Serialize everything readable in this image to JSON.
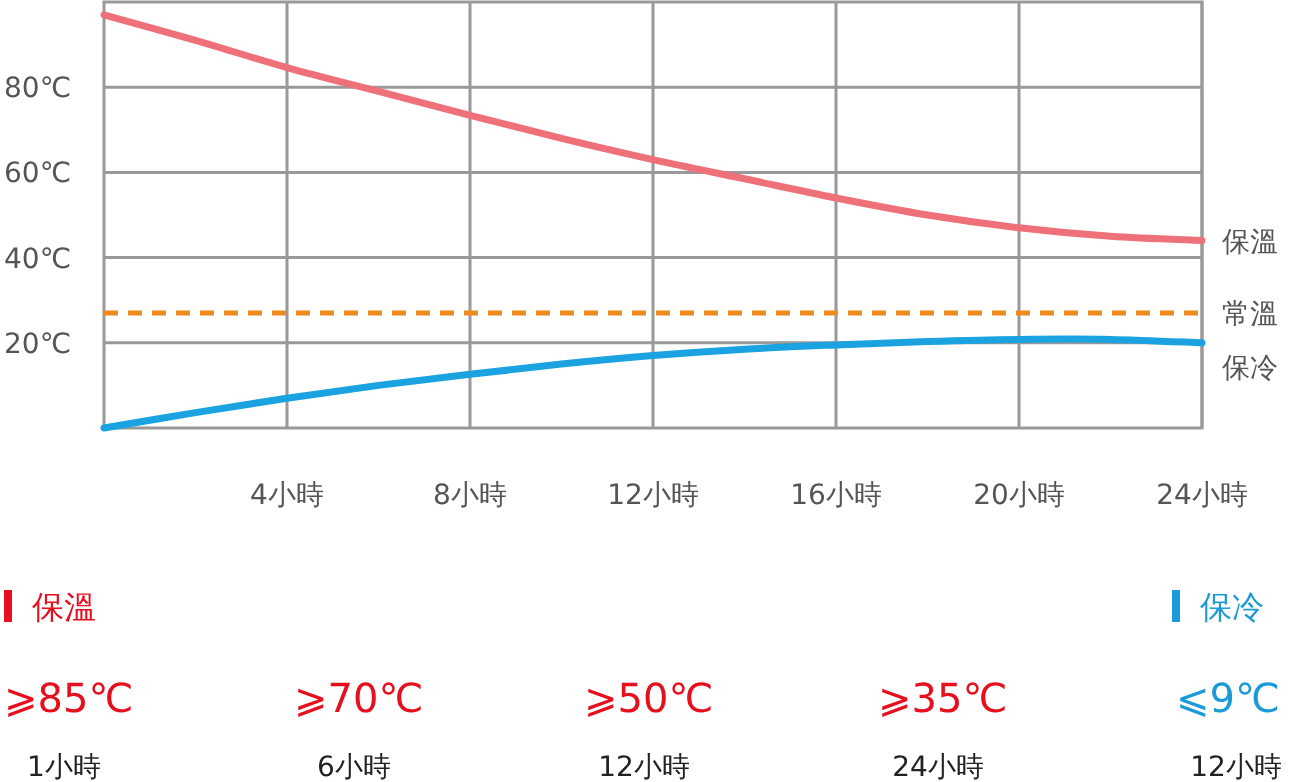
{
  "chart_data": {
    "type": "line",
    "x": [
      0,
      2,
      4,
      6,
      8,
      10,
      12,
      14,
      16,
      18,
      20,
      22,
      24
    ],
    "series": [
      {
        "name": "保溫",
        "color": "#ee717a",
        "values": [
          97,
          91,
          84.6,
          79,
          73.4,
          68,
          63,
          58.5,
          54,
          50,
          47,
          45,
          44
        ]
      },
      {
        "name": "保冷",
        "color": "#1aa3e0",
        "values": [
          0,
          3.6,
          7,
          10,
          12.6,
          15,
          17,
          18.5,
          19.5,
          20.3,
          20.8,
          20.8,
          20
        ]
      }
    ],
    "ref_lines": [
      {
        "axis": "y",
        "value": 27,
        "label": "常溫",
        "color": "#f0891e",
        "line_style": "dashed"
      }
    ],
    "xlim": [
      0,
      24
    ],
    "ylim": [
      0,
      100
    ],
    "xticks": [
      {
        "value": 4,
        "label": "4小時"
      },
      {
        "value": 8,
        "label": "8小時"
      },
      {
        "value": 12,
        "label": "12小時"
      },
      {
        "value": 16,
        "label": "16小時"
      },
      {
        "value": 20,
        "label": "20小時"
      },
      {
        "value": 24,
        "label": "24小時"
      }
    ],
    "yticks": [
      {
        "value": 20,
        "label": "20℃"
      },
      {
        "value": 40,
        "label": "40℃"
      },
      {
        "value": 60,
        "label": "60℃"
      },
      {
        "value": 80,
        "label": "80℃"
      }
    ],
    "grid": true,
    "annotations": [
      "保溫",
      "⩾85℃",
      "1小時",
      "⩾70℃",
      "6小時",
      "⩾50℃",
      "12小時",
      "⩾35℃",
      "24小時",
      "保冷",
      "⩽9℃",
      "12小時"
    ]
  }
}
